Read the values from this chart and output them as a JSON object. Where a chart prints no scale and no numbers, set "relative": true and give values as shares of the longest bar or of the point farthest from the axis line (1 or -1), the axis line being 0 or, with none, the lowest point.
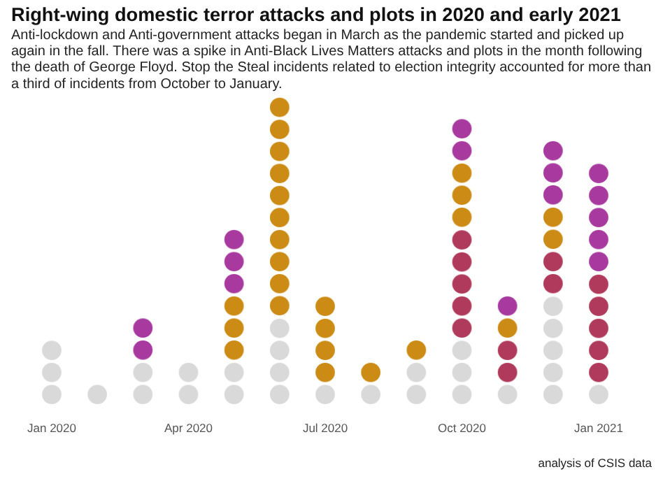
{
  "chart_data": {
    "type": "bar",
    "stacked": true,
    "relative": true,
    "title": "Right-wing domestic terror attacks and plots in 2020 and early 2021",
    "subtitle": "Anti-lockdown and Anti-government attacks began in March as the pandemic started and picked up again in the fall. There was a spike in Anti-Black Lives Matters attacks and plots in the month following the death of George Floyd. Stop the Steal incidents related to election integrity accounted for more than a third of incidents from October to January.",
    "categories": [
      "Jan 2020",
      null,
      null,
      "Apr 2020",
      null,
      null,
      "Jul 2020",
      null,
      null,
      "Oct 2020",
      null,
      null,
      "Jan 2021"
    ],
    "series": [
      {
        "color": "#d9d9d9",
        "values": [
          0.214,
          0.071,
          0.143,
          0.143,
          0.143,
          0.286,
          0.071,
          0.071,
          0.143,
          0.214,
          0.071,
          0.357,
          0.071
        ]
      },
      {
        "color": "#b03a5b",
        "values": [
          0,
          0,
          0,
          0,
          0,
          0,
          0,
          0,
          0,
          0.357,
          0.143,
          0.143,
          0.357
        ]
      },
      {
        "color": "#cc8b14",
        "values": [
          0,
          0,
          0,
          0,
          0.214,
          0.714,
          0.286,
          0.071,
          0.071,
          0.214,
          0.071,
          0.143,
          0
        ]
      },
      {
        "color": "#a8399f",
        "values": [
          0,
          0,
          0.143,
          0,
          0.214,
          0,
          0,
          0,
          0,
          0.143,
          0.071,
          0.214,
          0.357
        ]
      }
    ],
    "annotations": [
      "analysis of CSIS data"
    ]
  }
}
